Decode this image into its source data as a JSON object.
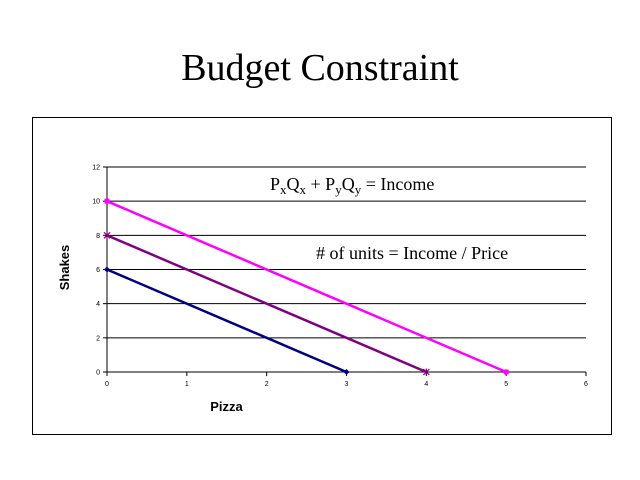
{
  "slide": {
    "title": "Budget Constraint"
  },
  "chart_data": {
    "type": "line",
    "title": "",
    "xlabel": "Pizza",
    "ylabel": "Shakes",
    "xlim": [
      0,
      6
    ],
    "ylim": [
      0,
      12
    ],
    "xticks": [
      0,
      1,
      2,
      3,
      4,
      5,
      6
    ],
    "yticks": [
      0,
      2,
      4,
      6,
      8,
      10,
      12
    ],
    "grid": "horizontal",
    "series": [
      {
        "x": [
          0,
          3
        ],
        "y": [
          6,
          0
        ],
        "color": "#000080",
        "marker": "diamond"
      },
      {
        "x": [
          0,
          4
        ],
        "y": [
          8,
          0
        ],
        "color": "#800080",
        "marker": "asterisk"
      },
      {
        "x": [
          0,
          5
        ],
        "y": [
          10,
          0
        ],
        "color": "#ff00ff",
        "marker": "square"
      }
    ],
    "annotations": [
      {
        "parts": [
          {
            "text": "P",
            "sub": false
          },
          {
            "text": "x",
            "sub": true
          },
          {
            "text": "Q",
            "sub": false
          },
          {
            "text": "x",
            "sub": true
          },
          {
            "text": " + P",
            "sub": false
          },
          {
            "text": "y",
            "sub": true
          },
          {
            "text": "Q",
            "sub": false
          },
          {
            "text": "y",
            "sub": true
          },
          {
            "text": " = Income",
            "sub": false
          }
        ]
      },
      {
        "parts": [
          {
            "text": "# of units = Income / Price",
            "sub": false
          }
        ]
      }
    ]
  }
}
